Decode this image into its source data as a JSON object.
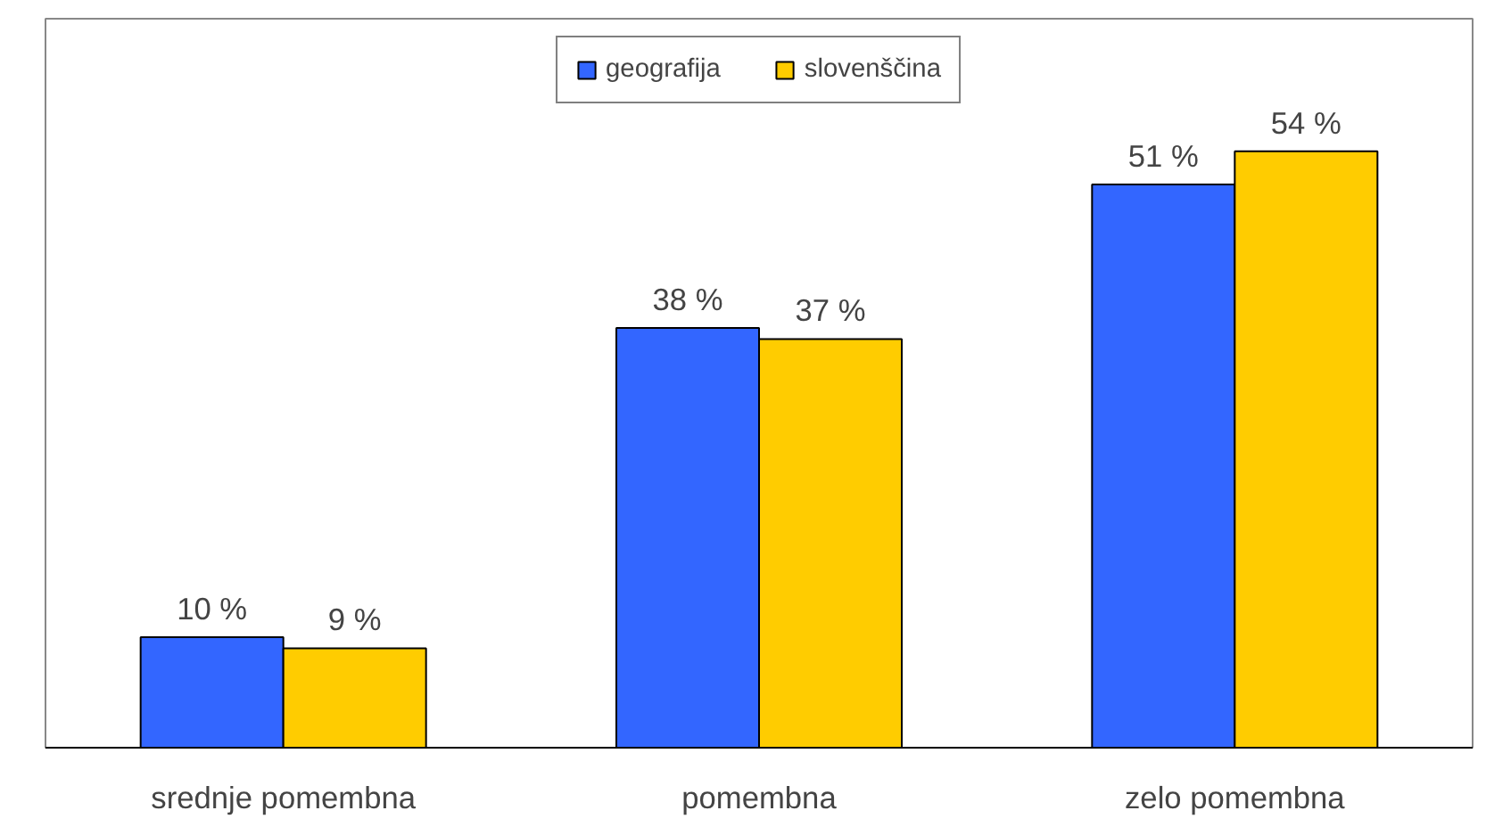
{
  "chart_data": {
    "type": "bar",
    "categories": [
      "srednje pomembna",
      "pomembna",
      "zelo pomembna"
    ],
    "series": [
      {
        "name": "geografija",
        "color": "#3366ff",
        "values": [
          10,
          38,
          51
        ],
        "value_labels": [
          "10 %",
          "38 %",
          "51 %"
        ]
      },
      {
        "name": "slovenščina",
        "color": "#ffcc00",
        "values": [
          9,
          37,
          54
        ],
        "value_labels": [
          "9 %",
          "37 %",
          "54 %"
        ]
      }
    ],
    "ylim": [
      0,
      66
    ],
    "tick_labels": "x",
    "grid": false,
    "legend": "top"
  }
}
